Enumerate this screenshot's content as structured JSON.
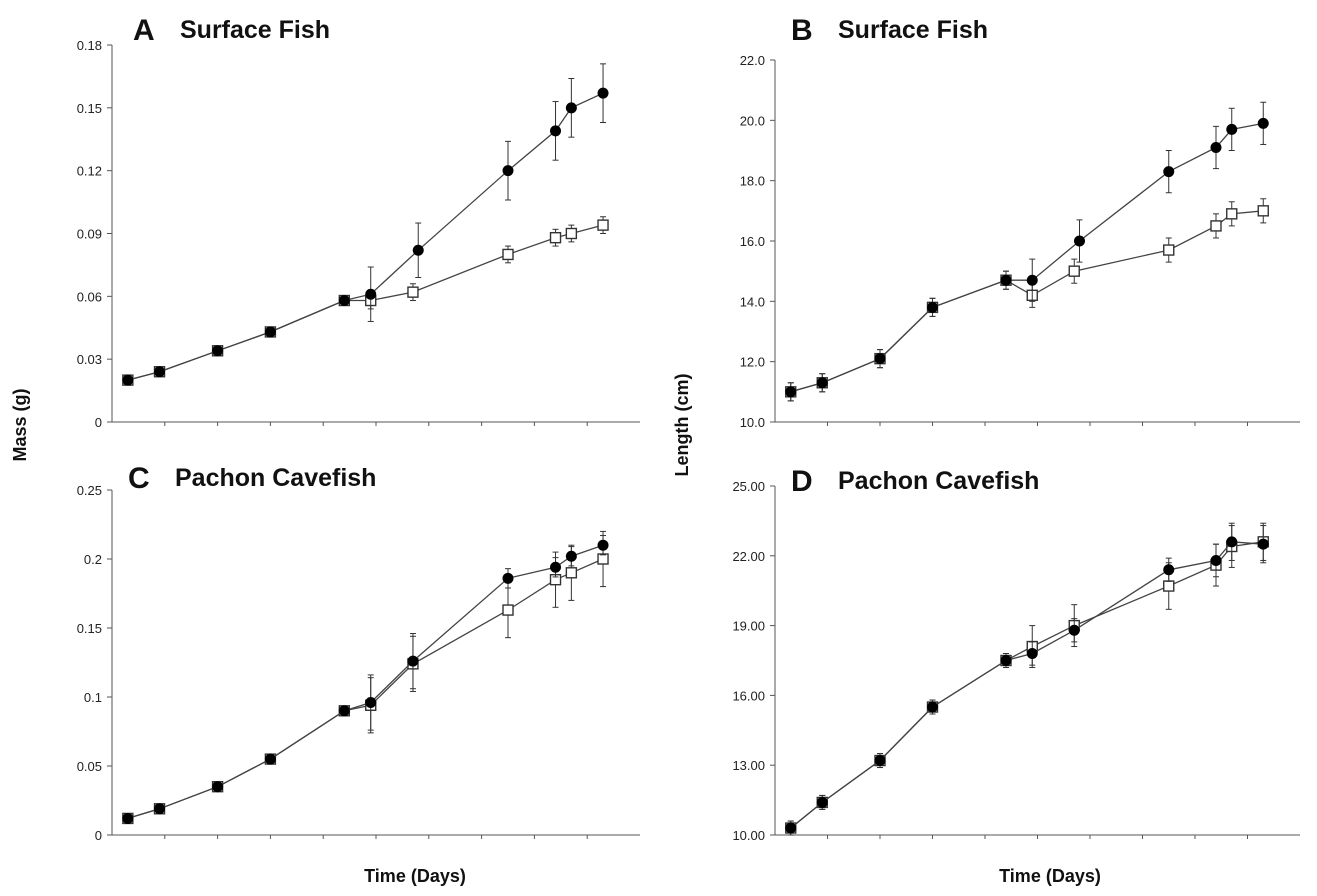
{
  "figure": {
    "shared_labels": {
      "mass_ylabel": "Mass (g)",
      "length_ylabel": "Length (cm)",
      "xlabel_left": "Time (Days)",
      "xlabel_right": "Time (Days)"
    }
  },
  "chart_data": [
    {
      "type": "line",
      "panel": "A",
      "title": "Surface Fish",
      "ylabel": "Mass (g)",
      "xlabel": "",
      "ylim": [
        0,
        0.18
      ],
      "yticks": [
        "0",
        "0.03",
        "0.06",
        "0.09",
        "0.12",
        "0.15",
        "0.18"
      ],
      "grid": false,
      "series": [
        {
          "marker": "filled-circle",
          "color": "#000000",
          "points": [
            {
              "x": 3,
              "y": 0.02,
              "err": 0.001
            },
            {
              "x": 9,
              "y": 0.024,
              "err": 0.001
            },
            {
              "x": 20,
              "y": 0.034,
              "err": 0.001
            },
            {
              "x": 30,
              "y": 0.043,
              "err": 0.001
            },
            {
              "x": 44,
              "y": 0.058,
              "err": 0.001
            },
            {
              "x": 49,
              "y": 0.061,
              "err": 0.013
            },
            {
              "x": 58,
              "y": 0.082,
              "err": 0.013
            },
            {
              "x": 75,
              "y": 0.12,
              "err": 0.014
            },
            {
              "x": 84,
              "y": 0.139,
              "err": 0.014
            },
            {
              "x": 87,
              "y": 0.15,
              "err": 0.014
            },
            {
              "x": 93,
              "y": 0.157,
              "err": 0.014
            }
          ]
        },
        {
          "marker": "open-square",
          "color": "#ffffff",
          "points": [
            {
              "x": 3,
              "y": 0.02,
              "err": 0.001
            },
            {
              "x": 9,
              "y": 0.024,
              "err": 0.001
            },
            {
              "x": 20,
              "y": 0.034,
              "err": 0.001
            },
            {
              "x": 30,
              "y": 0.043,
              "err": 0.001
            },
            {
              "x": 44,
              "y": 0.058,
              "err": 0.001
            },
            {
              "x": 49,
              "y": 0.058,
              "err": 0.004
            },
            {
              "x": 57,
              "y": 0.062,
              "err": 0.004
            },
            {
              "x": 75,
              "y": 0.08,
              "err": 0.004
            },
            {
              "x": 84,
              "y": 0.088,
              "err": 0.004
            },
            {
              "x": 87,
              "y": 0.09,
              "err": 0.004
            },
            {
              "x": 93,
              "y": 0.094,
              "err": 0.004
            }
          ]
        }
      ]
    },
    {
      "type": "line",
      "panel": "B",
      "title": "Surface Fish",
      "ylabel": "Length (cm)",
      "xlabel": "",
      "ylim": [
        10.0,
        22.0
      ],
      "yticks": [
        "10.0",
        "12.0",
        "14.0",
        "16.0",
        "18.0",
        "20.0",
        "22.0"
      ],
      "grid": false,
      "series": [
        {
          "marker": "filled-circle",
          "color": "#000000",
          "points": [
            {
              "x": 3,
              "y": 11.0,
              "err": 0.3
            },
            {
              "x": 9,
              "y": 11.3,
              "err": 0.3
            },
            {
              "x": 20,
              "y": 12.1,
              "err": 0.3
            },
            {
              "x": 30,
              "y": 13.8,
              "err": 0.3
            },
            {
              "x": 44,
              "y": 14.7,
              "err": 0.3
            },
            {
              "x": 49,
              "y": 14.7,
              "err": 0.7
            },
            {
              "x": 58,
              "y": 16.0,
              "err": 0.7
            },
            {
              "x": 75,
              "y": 18.3,
              "err": 0.7
            },
            {
              "x": 84,
              "y": 19.1,
              "err": 0.7
            },
            {
              "x": 87,
              "y": 19.7,
              "err": 0.7
            },
            {
              "x": 93,
              "y": 19.9,
              "err": 0.7
            }
          ]
        },
        {
          "marker": "open-square",
          "color": "#ffffff",
          "points": [
            {
              "x": 3,
              "y": 11.0,
              "err": 0.3
            },
            {
              "x": 9,
              "y": 11.3,
              "err": 0.3
            },
            {
              "x": 20,
              "y": 12.1,
              "err": 0.3
            },
            {
              "x": 30,
              "y": 13.8,
              "err": 0.3
            },
            {
              "x": 44,
              "y": 14.7,
              "err": 0.3
            },
            {
              "x": 49,
              "y": 14.2,
              "err": 0.4
            },
            {
              "x": 57,
              "y": 15.0,
              "err": 0.4
            },
            {
              "x": 75,
              "y": 15.7,
              "err": 0.4
            },
            {
              "x": 84,
              "y": 16.5,
              "err": 0.4
            },
            {
              "x": 87,
              "y": 16.9,
              "err": 0.4
            },
            {
              "x": 93,
              "y": 17.0,
              "err": 0.4
            }
          ]
        }
      ]
    },
    {
      "type": "line",
      "panel": "C",
      "title": "Pachon Cavefish",
      "ylabel": "Mass (g)",
      "xlabel": "Time (Days)",
      "ylim": [
        0,
        0.25
      ],
      "yticks": [
        "0",
        "0.05",
        "0.1",
        "0.15",
        "0.2",
        "0.25"
      ],
      "grid": false,
      "series": [
        {
          "marker": "filled-circle",
          "color": "#000000",
          "points": [
            {
              "x": 3,
              "y": 0.012,
              "err": 0.003
            },
            {
              "x": 9,
              "y": 0.019,
              "err": 0.003
            },
            {
              "x": 20,
              "y": 0.035,
              "err": 0.003
            },
            {
              "x": 30,
              "y": 0.055,
              "err": 0.003
            },
            {
              "x": 44,
              "y": 0.09,
              "err": 0.003
            },
            {
              "x": 49,
              "y": 0.096,
              "err": 0.02
            },
            {
              "x": 57,
              "y": 0.126,
              "err": 0.02
            },
            {
              "x": 75,
              "y": 0.186,
              "err": 0.007
            },
            {
              "x": 84,
              "y": 0.194,
              "err": 0.007
            },
            {
              "x": 87,
              "y": 0.202,
              "err": 0.007
            },
            {
              "x": 93,
              "y": 0.21,
              "err": 0.007
            }
          ]
        },
        {
          "marker": "open-square",
          "color": "#ffffff",
          "points": [
            {
              "x": 3,
              "y": 0.012,
              "err": 0.003
            },
            {
              "x": 9,
              "y": 0.019,
              "err": 0.003
            },
            {
              "x": 20,
              "y": 0.035,
              "err": 0.003
            },
            {
              "x": 30,
              "y": 0.055,
              "err": 0.003
            },
            {
              "x": 44,
              "y": 0.09,
              "err": 0.003
            },
            {
              "x": 49,
              "y": 0.094,
              "err": 0.02
            },
            {
              "x": 57,
              "y": 0.124,
              "err": 0.02
            },
            {
              "x": 75,
              "y": 0.163,
              "err": 0.02
            },
            {
              "x": 84,
              "y": 0.185,
              "err": 0.02
            },
            {
              "x": 87,
              "y": 0.19,
              "err": 0.02
            },
            {
              "x": 93,
              "y": 0.2,
              "err": 0.02
            }
          ]
        }
      ]
    },
    {
      "type": "line",
      "panel": "D",
      "title": "Pachon Cavefish",
      "ylabel": "Length (cm)",
      "xlabel": "Time (Days)",
      "ylim": [
        10.0,
        25.0
      ],
      "yticks": [
        "10.00",
        "13.00",
        "16.00",
        "19.00",
        "22.00",
        "25.00"
      ],
      "grid": false,
      "series": [
        {
          "marker": "filled-circle",
          "color": "#000000",
          "points": [
            {
              "x": 3,
              "y": 10.3,
              "err": 0.3
            },
            {
              "x": 9,
              "y": 11.4,
              "err": 0.3
            },
            {
              "x": 20,
              "y": 13.2,
              "err": 0.3
            },
            {
              "x": 30,
              "y": 15.5,
              "err": 0.3
            },
            {
              "x": 44,
              "y": 17.5,
              "err": 0.3
            },
            {
              "x": 49,
              "y": 17.8,
              "err": 0.5
            },
            {
              "x": 57,
              "y": 18.8,
              "err": 0.5
            },
            {
              "x": 75,
              "y": 21.4,
              "err": 0.5
            },
            {
              "x": 84,
              "y": 21.8,
              "err": 0.7
            },
            {
              "x": 87,
              "y": 22.6,
              "err": 0.8
            },
            {
              "x": 93,
              "y": 22.5,
              "err": 0.8
            }
          ]
        },
        {
          "marker": "open-square",
          "color": "#ffffff",
          "points": [
            {
              "x": 3,
              "y": 10.3,
              "err": 0.3
            },
            {
              "x": 9,
              "y": 11.4,
              "err": 0.3
            },
            {
              "x": 20,
              "y": 13.2,
              "err": 0.3
            },
            {
              "x": 30,
              "y": 15.5,
              "err": 0.3
            },
            {
              "x": 44,
              "y": 17.5,
              "err": 0.3
            },
            {
              "x": 49,
              "y": 18.1,
              "err": 0.9
            },
            {
              "x": 57,
              "y": 19.0,
              "err": 0.9
            },
            {
              "x": 75,
              "y": 20.7,
              "err": 1.0
            },
            {
              "x": 84,
              "y": 21.6,
              "err": 0.9
            },
            {
              "x": 87,
              "y": 22.4,
              "err": 0.9
            },
            {
              "x": 93,
              "y": 22.6,
              "err": 0.8
            }
          ]
        }
      ]
    }
  ]
}
